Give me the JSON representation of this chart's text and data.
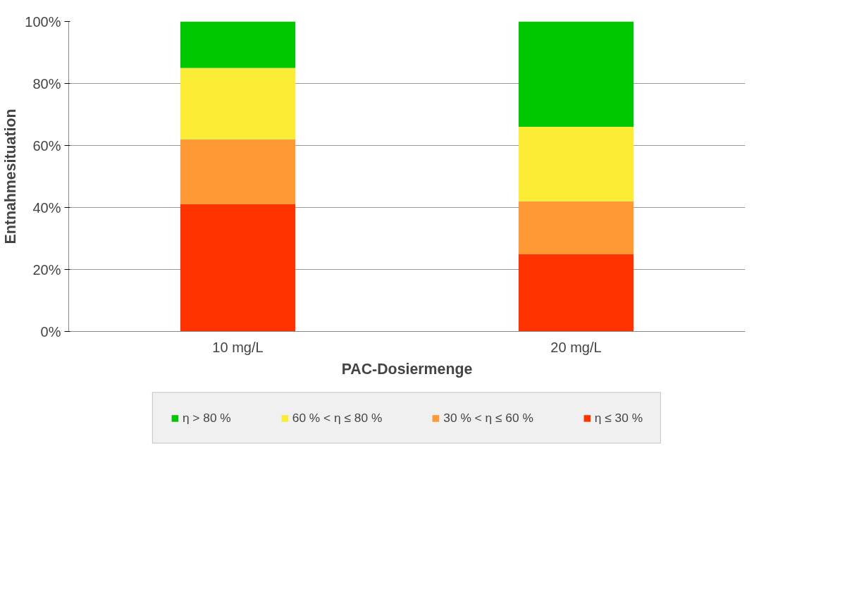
{
  "chart_data": {
    "type": "bar",
    "stacked": true,
    "xlabel": "PAC-Dosiermenge",
    "ylabel": "Entnahmesituation",
    "categories": [
      "10 mg/L",
      "20 mg/L"
    ],
    "series": [
      {
        "name": "η ≤ 30 %",
        "color": "#ff3300",
        "values": [
          41,
          25
        ]
      },
      {
        "name": "30 % < η ≤ 60 %",
        "color": "#ff9933",
        "values": [
          21,
          17
        ]
      },
      {
        "name": "60 % < η ≤ 80 %",
        "color": "#fcec36",
        "values": [
          23,
          24
        ]
      },
      {
        "name": "η > 80 %",
        "color": "#00c800",
        "values": [
          15,
          34
        ]
      }
    ],
    "ylim": [
      0,
      100
    ],
    "yticks": [
      {
        "value": 0,
        "label": "0%"
      },
      {
        "value": 20,
        "label": "20%"
      },
      {
        "value": 40,
        "label": "40%"
      },
      {
        "value": 60,
        "label": "60%"
      },
      {
        "value": 80,
        "label": "80%"
      },
      {
        "value": 100,
        "label": "100%"
      }
    ],
    "grid": "y",
    "legend": "bottom"
  }
}
